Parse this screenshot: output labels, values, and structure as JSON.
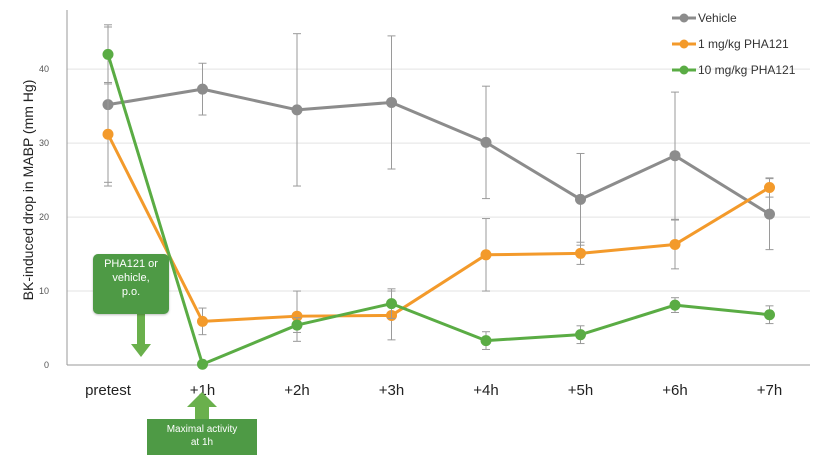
{
  "chart_data": {
    "type": "line",
    "ylabel": "BK-induced drop in MABP (mm Hg)",
    "xlabel": "",
    "categories": [
      "pretest",
      "+1h",
      "+2h",
      "+3h",
      "+4h",
      "+5h",
      "+6h",
      "+7h"
    ],
    "ylim": [
      0,
      48
    ],
    "yticks": [
      0,
      10,
      20,
      30,
      40
    ],
    "grid": true,
    "legend_position": "top-right",
    "series": [
      {
        "name": "Vehicle",
        "color": "#8c8c8c",
        "values": [
          35.2,
          37.3,
          34.5,
          35.5,
          30.1,
          22.4,
          28.3,
          20.4
        ],
        "errors": [
          10.5,
          3.5,
          10.3,
          9.0,
          7.6,
          6.2,
          8.6,
          4.8
        ]
      },
      {
        "name": "1 mg/kg PHA121",
        "color": "#f39a2b",
        "values": [
          31.2,
          5.9,
          6.6,
          6.7,
          14.9,
          15.1,
          16.3,
          24.0
        ],
        "errors": [
          7.0,
          1.8,
          3.4,
          3.3,
          4.9,
          1.5,
          3.3,
          1.3
        ]
      },
      {
        "name": "10 mg/kg PHA121",
        "color": "#5aac44",
        "values": [
          42.0,
          0.1,
          5.4,
          8.3,
          3.3,
          4.1,
          8.1,
          6.8
        ],
        "errors": [
          4.0,
          0.0,
          1.0,
          2.0,
          1.2,
          1.2,
          1.0,
          1.2
        ]
      }
    ]
  },
  "annotations": {
    "dose_box": {
      "line1": "PHA121 or",
      "line2": "vehicle,",
      "line3": "p.o."
    },
    "activity_box": {
      "line1": "Maximal activity",
      "line2": "at 1h"
    },
    "box_color": "#4e9a45",
    "arrow_color": "#6ab04c"
  }
}
